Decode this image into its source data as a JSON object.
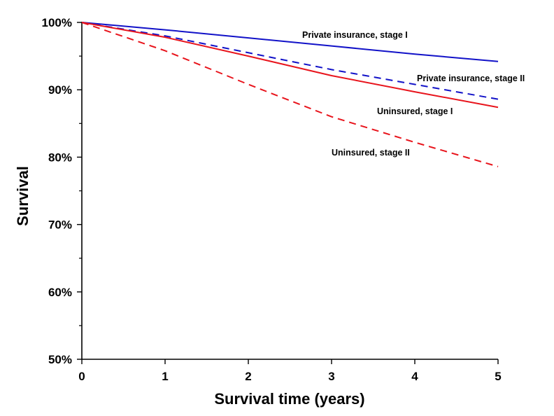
{
  "chart_data": {
    "type": "line",
    "title": "",
    "xlabel": "Survival time (years)",
    "ylabel": "Survival",
    "xlim": [
      0,
      5
    ],
    "ylim": [
      50,
      100
    ],
    "x_ticks": [
      0,
      1,
      2,
      3,
      4,
      5
    ],
    "x_tick_labels": [
      "0",
      "1",
      "2",
      "3",
      "4",
      "5"
    ],
    "y_ticks": [
      50,
      60,
      70,
      80,
      90,
      100
    ],
    "y_tick_labels": [
      "50%",
      "60%",
      "70%",
      "80%",
      "90%",
      "100%"
    ],
    "y_minor_ticks": true,
    "grid": false,
    "legend": "inline labels",
    "series": [
      {
        "name": "Private insurance, stage I",
        "color": "#1212c8",
        "dash": "solid",
        "x": [
          0,
          1,
          2,
          3,
          4,
          5
        ],
        "values": [
          100,
          98.9,
          97.7,
          96.5,
          95.3,
          94.2
        ]
      },
      {
        "name": "Private insurance, stage II",
        "color": "#1212c8",
        "dash": "dashed",
        "x": [
          0,
          1,
          2,
          3,
          4,
          5
        ],
        "values": [
          100,
          98.0,
          95.5,
          93.0,
          90.8,
          88.6
        ]
      },
      {
        "name": "Uninsured, stage I",
        "color": "#e8141c",
        "dash": "solid",
        "x": [
          0,
          1,
          2,
          3,
          4,
          5
        ],
        "values": [
          100,
          97.8,
          95.0,
          92.1,
          89.7,
          87.4
        ]
      },
      {
        "name": "Uninsured, stage II",
        "color": "#e8141c",
        "dash": "dashed",
        "x": [
          0,
          1,
          2,
          3,
          4,
          5
        ],
        "values": [
          100,
          95.8,
          90.8,
          86.0,
          82.2,
          78.6
        ]
      }
    ]
  }
}
